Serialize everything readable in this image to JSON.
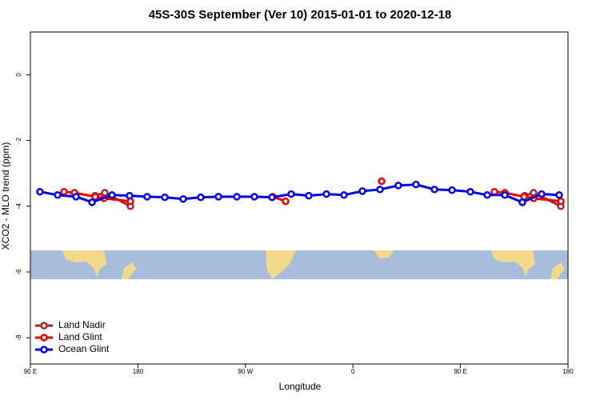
{
  "chart_data": {
    "type": "line",
    "title": "45S-30S September (Ver 10)   2015-01-01 to 2020-12-18",
    "x_label": "Longitude",
    "y_label": "XCO2 - MLO trend (ppm)",
    "xlim": [
      90,
      540
    ],
    "ylim": [
      -8.8,
      1.3
    ],
    "xticks": [
      {
        "value": 90,
        "label": "90 E"
      },
      {
        "value": 180,
        "label": "180"
      },
      {
        "value": 270,
        "label": "90 W"
      },
      {
        "value": 360,
        "label": "0"
      },
      {
        "value": 450,
        "label": "90 E"
      },
      {
        "value": 540,
        "label": "180"
      }
    ],
    "yticks": [
      0,
      -2,
      -4,
      -6,
      -8
    ],
    "legend": "bottom-left",
    "series": [
      {
        "name": "Land Nadir",
        "color": "#a52a2a",
        "x": [
          144.2,
          152.3,
          173.7,
          null,
          503.8,
          511.2,
          534
        ],
        "values": [
          -3.68,
          -3.59,
          -4.0,
          null,
          -3.68,
          -3.59,
          -4.0
        ]
      },
      {
        "name": "Land Glint",
        "color": "#ee0000",
        "x": [
          118.1,
          126.8,
          144.2,
          151.6,
          173.7,
          null,
          292.9,
          303.6,
          null,
          384,
          null,
          478.4,
          487.1,
          503.2,
          511.2,
          534
        ],
        "values": [
          -3.56,
          -3.59,
          -3.71,
          -3.76,
          -3.85,
          null,
          -3.71,
          -3.85,
          null,
          -3.24,
          null,
          -3.56,
          -3.59,
          -3.71,
          -3.76,
          -3.85
        ]
      },
      {
        "name": "Ocean Glint",
        "color": "#0000ee",
        "x": [
          98,
          112.8,
          128.2,
          141.6,
          158.3,
          173,
          187.7,
          202.5,
          217.9,
          232.6,
          247.4,
          262.8,
          277.5,
          292.2,
          308.3,
          323,
          337.8,
          352.5,
          367.9,
          382.6,
          398,
          412.8,
          428.2,
          442.9,
          458.3,
          472.4,
          487.1,
          501.8,
          517.9,
          532.6
        ],
        "values": [
          -3.56,
          -3.66,
          -3.71,
          -3.88,
          -3.66,
          -3.68,
          -3.71,
          -3.73,
          -3.78,
          -3.73,
          -3.71,
          -3.71,
          -3.71,
          -3.73,
          -3.63,
          -3.68,
          -3.63,
          -3.66,
          -3.54,
          -3.49,
          -3.37,
          -3.34,
          -3.49,
          -3.51,
          -3.56,
          -3.66,
          -3.66,
          -3.88,
          -3.63,
          -3.66
        ]
      }
    ]
  }
}
